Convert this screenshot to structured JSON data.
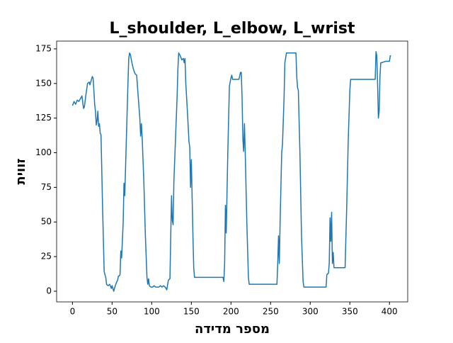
{
  "chart_data": {
    "type": "line",
    "title": "L_shoulder, L_elbow, L_wrist",
    "x_label": "מספר מדידה",
    "y_label": "זווית",
    "xlim": [
      -20,
      423
    ],
    "ylim": [
      -7.7,
      180.6
    ],
    "xticks": [
      0,
      50,
      100,
      150,
      200,
      250,
      300,
      350,
      400
    ],
    "yticks": [
      0,
      25,
      50,
      75,
      100,
      125,
      150,
      175
    ],
    "series": [
      {
        "color": "#1f77b4",
        "x": [
          0,
          2,
          4,
          6,
          8,
          10,
          12,
          13,
          14,
          15,
          17,
          19,
          21,
          22,
          24,
          25,
          26,
          27,
          28,
          29,
          30,
          31,
          32,
          33,
          34,
          35,
          36,
          38,
          40,
          42,
          43,
          45,
          47,
          49,
          50,
          52,
          54,
          56,
          57,
          58,
          59,
          60,
          61,
          62,
          64,
          65,
          66,
          68,
          70,
          71,
          72,
          73,
          75,
          77,
          79,
          81,
          83,
          85,
          86,
          87,
          88,
          90,
          92,
          94,
          95,
          96,
          97,
          99,
          101,
          103,
          105,
          107,
          109,
          111,
          113,
          115,
          117,
          119,
          121,
          123,
          124,
          125,
          126,
          127,
          128,
          130,
          132,
          133,
          134,
          136,
          138,
          140,
          141,
          142,
          143,
          145,
          147,
          148,
          149,
          150,
          152,
          153,
          154,
          160,
          170,
          180,
          187,
          190,
          191,
          192,
          193,
          194,
          196,
          198,
          200,
          201,
          202,
          205,
          210,
          212,
          213,
          214,
          215,
          216,
          217,
          218,
          220,
          222,
          223,
          230,
          240,
          250,
          258,
          259,
          260,
          261,
          262,
          264,
          265,
          267,
          268,
          270,
          275,
          280,
          282,
          283,
          284,
          285,
          287,
          289,
          291,
          292,
          300,
          310,
          317,
          320,
          321,
          323,
          324,
          325,
          326,
          327,
          328,
          329,
          330,
          332,
          335,
          340,
          344,
          346,
          348,
          350,
          351,
          355,
          360,
          370,
          380,
          382,
          383,
          384,
          385,
          386,
          387,
          388,
          389,
          390,
          395,
          400,
          401,
          402
        ],
        "values": [
          134,
          137,
          135,
          138,
          137,
          139,
          141,
          136,
          132,
          133,
          142,
          150,
          151,
          149,
          153,
          155,
          154,
          145,
          135,
          130,
          120,
          123,
          130,
          119,
          121,
          114,
          113,
          60,
          14,
          10,
          5,
          4,
          5,
          2,
          4,
          0,
          4,
          7,
          8,
          11,
          11,
          12,
          29,
          24,
          50,
          78,
          69,
          110,
          150,
          168,
          172,
          171,
          165,
          160,
          157,
          156,
          140,
          125,
          112,
          121,
          110,
          80,
          40,
          10,
          5,
          9,
          4,
          3,
          3,
          4,
          3,
          3,
          3,
          4,
          3,
          4,
          3,
          1,
          8,
          9,
          40,
          69,
          51,
          48,
          80,
          110,
          140,
          160,
          172,
          170,
          167,
          168,
          165,
          168,
          150,
          130,
          108,
          104,
          75,
          95,
          40,
          17,
          10,
          10,
          10,
          10,
          10,
          10,
          7,
          20,
          62,
          42,
          100,
          148,
          154,
          156,
          153,
          153,
          153,
          158,
          158,
          140,
          110,
          101,
          121,
          100,
          50,
          10,
          5,
          5,
          5,
          5,
          5,
          20,
          40,
          20,
          50,
          100,
          106,
          140,
          165,
          172,
          172,
          172,
          172,
          155,
          147,
          145,
          100,
          40,
          7,
          3,
          3,
          3,
          3,
          3,
          12,
          13,
          20,
          53,
          36,
          57,
          20,
          28,
          17,
          17,
          17,
          17,
          17,
          60,
          110,
          145,
          153,
          153,
          153,
          153,
          153,
          153,
          173,
          170,
          150,
          125,
          130,
          155,
          165,
          165,
          166,
          166,
          170,
          170
        ]
      }
    ]
  }
}
